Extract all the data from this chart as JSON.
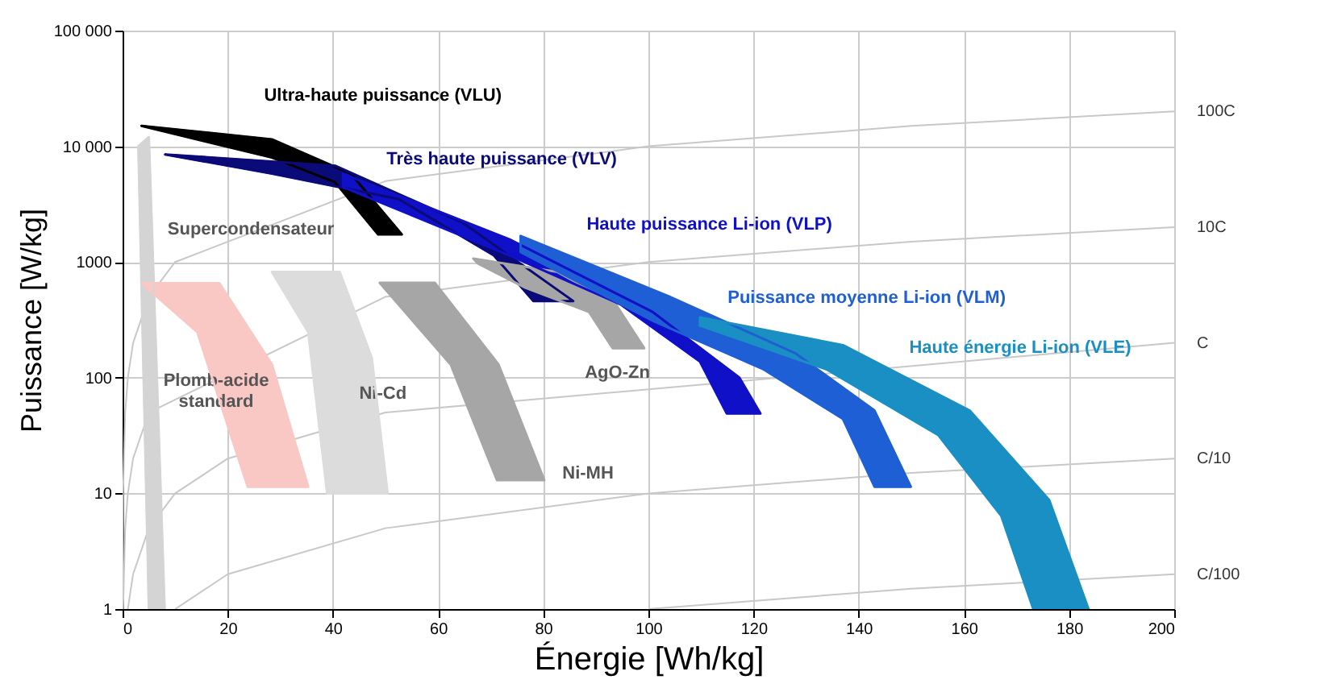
{
  "chart_data": {
    "type": "area",
    "xlabel": "Énergie [Wh/kg]",
    "ylabel": "Puissance [W/kg]",
    "log": "y",
    "grid": true,
    "xlim": [
      0,
      200
    ],
    "xticks": [
      0,
      20,
      40,
      60,
      80,
      100,
      120,
      140,
      160,
      180,
      200
    ],
    "ylim": [
      1,
      100000
    ],
    "yticks": [
      1,
      10,
      100,
      1000,
      {
        "value": 10000,
        "label": "10 000"
      },
      {
        "value": 100000,
        "label": "100 000"
      }
    ],
    "series": [
      {
        "color": "#000000",
        "x": [
          3.6,
          28.4,
          43.4,
          53.1,
          48.6,
          40.4,
          28.4
        ],
        "values": [
          15000,
          11500,
          5800,
          1730,
          1730,
          4900,
          8000
        ]
      },
      {
        "color": "#0a0a78",
        "x": [
          8.1,
          40.4,
          64.6,
          85.7,
          78.1,
          70.6,
          52.5,
          28.4
        ],
        "values": [
          8500,
          6800,
          2200,
          460,
          460,
          1140,
          3500,
          5800
        ]
      },
      {
        "color": "#d4d4d4",
        "x": [
          5,
          3,
          5,
          8
        ],
        "values": [
          1,
          10000,
          12000,
          1
        ]
      },
      {
        "color": "#f9c8c4",
        "x": [
          3.6,
          18.4,
          28.4,
          35.3,
          23.8,
          14.2
        ],
        "values": [
          656,
          656,
          130,
          11.4,
          11.4,
          248
        ]
      },
      {
        "color": "#dcdcdc",
        "x": [
          28.4,
          41.3,
          47.4,
          50.4,
          38.9,
          35.3
        ],
        "values": [
          820,
          820,
          148,
          10,
          10,
          248
        ]
      },
      {
        "color": "#a6a6a6",
        "x": [
          66.7,
          82.7,
          93.8,
          99.2,
          93.2,
          88.7,
          76.6,
          67.6
        ],
        "values": [
          1070,
          820,
          430,
          180,
          180,
          370,
          600,
          970
        ]
      },
      {
        "color": "#a6a6a6",
        "x": [
          48.9,
          59.4,
          71.5,
          80.2,
          71.2,
          62.4
        ],
        "values": [
          660,
          660,
          130,
          13,
          13,
          130
        ]
      },
      {
        "color": "#1010c8",
        "x": [
          41.9,
          73.6,
          100.8,
          117.3,
          121.3,
          114.9,
          109.8,
          94.7,
          73.6,
          41.9
        ],
        "values": [
          5800,
          1570,
          370,
          100,
          49,
          49,
          138,
          430,
          1140,
          4450
        ]
      },
      {
        "color": "#1f5fd6",
        "x": [
          75.7,
          103.8,
          127.9,
          143,
          149.9,
          143,
          137,
          121.9,
          100.8,
          75.7
        ],
        "values": [
          1680,
          506,
          163,
          52,
          11.4,
          11.4,
          44,
          118,
          311,
          1220
        ]
      },
      {
        "color": "#1a8fc4",
        "x": [
          109.8,
          137,
          161.1,
          176.2,
          183.7,
          173.2,
          167.1,
          155.1,
          133.9,
          109.8
        ],
        "values": [
          332,
          191,
          52,
          8.8,
          1,
          1,
          6.4,
          32,
          118,
          282
        ]
      },
      {
        "type": "line",
        "color": "#c8c8c8",
        "x": [
          0.01,
          0.1,
          0.5,
          1,
          2,
          5,
          10,
          50,
          100,
          150,
          200
        ],
        "values": [
          1,
          10,
          50,
          100,
          200,
          500,
          1000,
          5000,
          10000,
          15000,
          20000
        ]
      },
      {
        "type": "line",
        "color": "#c8c8c8",
        "x": [
          0.1,
          0.5,
          1,
          2,
          5,
          50,
          100,
          150,
          200
        ],
        "values": [
          1,
          5,
          10,
          20,
          50,
          500,
          1000,
          1500,
          2000
        ]
      },
      {
        "type": "line",
        "color": "#c8c8c8",
        "x": [
          1,
          2,
          5,
          10,
          20,
          50,
          200
        ],
        "values": [
          1,
          2,
          5,
          10,
          20,
          50,
          200
        ]
      },
      {
        "type": "line",
        "color": "#c8c8c8",
        "x": [
          10,
          20,
          50,
          100,
          150,
          200
        ],
        "values": [
          1,
          2,
          5,
          10,
          15,
          20
        ]
      },
      {
        "type": "line",
        "color": "#c8c8c8",
        "x": [
          100,
          150,
          200
        ],
        "values": [
          1,
          1.5,
          2
        ]
      }
    ],
    "annotations": [
      "Ultra-haute puissance (VLU)",
      "Très haute puissance (VLV)",
      "Supercondensateur",
      "Plomb-acide\nstandard",
      "Ni-Cd",
      "AgO-Zn",
      "Ni-MH",
      "Haute puissance Li-ion (VLP)",
      "Puissance moyenne Li-ion (VLM)",
      "Haute énergie Li-ion  (VLE)",
      "100C",
      "10C",
      "C",
      "C/10",
      "C/100"
    ]
  }
}
